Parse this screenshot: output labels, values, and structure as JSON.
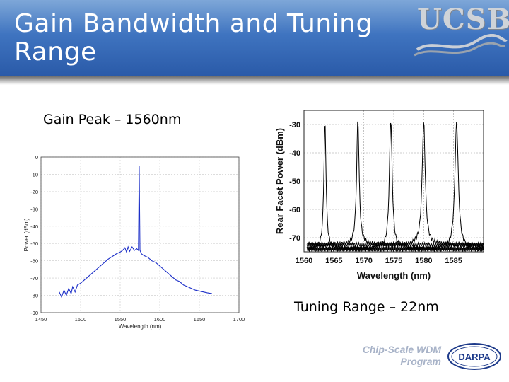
{
  "slide": {
    "title": "Gain Bandwidth and Tuning Range",
    "logo_text": "UCSB",
    "left_caption": "Gain Peak – 1560nm",
    "right_caption": "Tuning Range – 22nm",
    "program_line1": "Chip-Scale WDM",
    "program_line2": "Program",
    "darpa_text": "DARPA",
    "colors": {
      "header": "#3f74c0",
      "gain_trace": "#1c2fc8",
      "tuning_trace": "#000000"
    }
  },
  "chart_data": [
    {
      "type": "line",
      "title": "",
      "xlabel": "Wavelength (nm)",
      "ylabel": "Power (dBm)",
      "xlim": [
        1450,
        1700
      ],
      "ylim": [
        -90,
        0
      ],
      "xticks": [
        1450,
        1500,
        1550,
        1600,
        1650,
        1700
      ],
      "yticks": [
        0,
        -10,
        -20,
        -30,
        -40,
        -50,
        -60,
        -70,
        -80,
        -90
      ],
      "grid": true,
      "series": [
        {
          "x": [
            1473,
            1476,
            1479,
            1482,
            1485,
            1488,
            1490,
            1493,
            1496,
            1500,
            1505,
            1510,
            1515,
            1520,
            1525,
            1530,
            1535,
            1540,
            1545,
            1550,
            1553,
            1556,
            1558,
            1560,
            1562,
            1565,
            1568,
            1571,
            1573,
            1574,
            1575,
            1576,
            1577,
            1580,
            1585,
            1590,
            1595,
            1600,
            1605,
            1610,
            1615,
            1620,
            1625,
            1630,
            1635,
            1640,
            1645,
            1650,
            1655,
            1660,
            1666
          ],
          "y": [
            -78,
            -81,
            -77,
            -80,
            -76,
            -79,
            -75,
            -78,
            -74,
            -73,
            -71,
            -69,
            -67,
            -65,
            -63,
            -61,
            -59,
            -57.5,
            -56,
            -55,
            -54,
            -52.5,
            -55,
            -52,
            -54.5,
            -52,
            -54,
            -53,
            -54,
            -5,
            -54,
            -55,
            -56,
            -57,
            -58,
            -60,
            -61,
            -63,
            -65,
            -67,
            -69,
            -71,
            -72,
            -74,
            -75,
            -76,
            -77,
            -77.5,
            -78,
            -78.5,
            -79
          ]
        }
      ]
    },
    {
      "type": "line",
      "title": "",
      "xlabel": "Wavelength (nm)",
      "ylabel": "Rear Facet Power (dBm)",
      "xlim": [
        1560,
        1590
      ],
      "ylim": [
        -75,
        -25
      ],
      "xticks": [
        1560,
        1565,
        1570,
        1575,
        1580,
        1585
      ],
      "yticks": [
        -30,
        -40,
        -50,
        -60,
        -70
      ],
      "grid": true,
      "series": [
        {
          "peak": 1563.5,
          "peak_value": -29
        },
        {
          "peak": 1569.0,
          "peak_value": -28
        },
        {
          "peak": 1574.5,
          "peak_value": -28
        },
        {
          "peak": 1580.0,
          "peak_value": -29
        },
        {
          "peak": 1585.5,
          "peak_value": -29
        }
      ]
    }
  ]
}
